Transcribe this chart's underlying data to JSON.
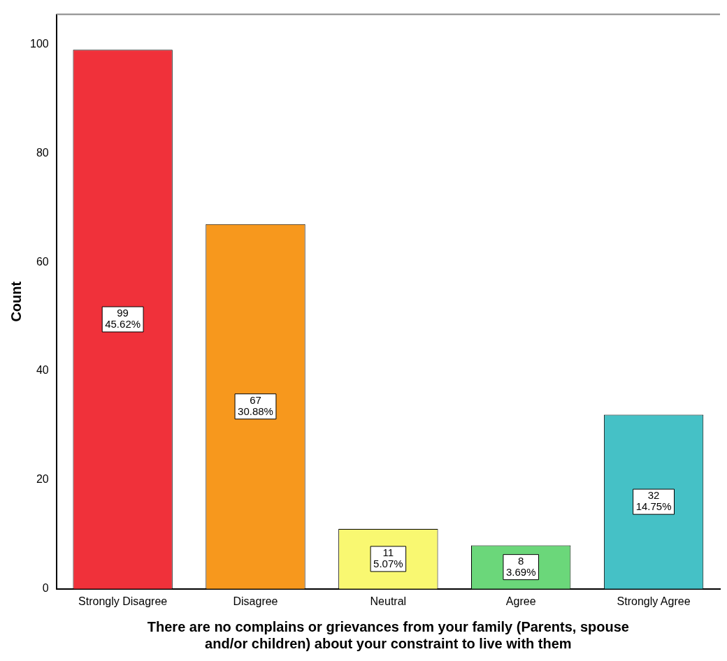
{
  "chart_data": {
    "type": "bar",
    "xlabel": "There are no complains or grievances from your family (Parents, spouse and/or children) about your constraint to live with them",
    "ylabel": "Count",
    "categories": [
      "Strongly Disagree",
      "Disagree",
      "Neutral",
      "Agree",
      "Strongly Agree"
    ],
    "values": [
      99,
      67,
      11,
      8,
      32
    ],
    "colors": [
      "#f0313a",
      "#f7981d",
      "#f9f871",
      "#6bd77a",
      "#45c1c6"
    ],
    "value_labels": [
      "99\n45.62%",
      "67\n30.88%",
      "11\n5.07%",
      "8\n3.69%",
      "32\n14.75%"
    ],
    "ylim": [
      0,
      105.5
    ],
    "yticks": [
      0,
      20,
      40,
      60,
      80,
      100
    ],
    "grid": false,
    "legend": false
  }
}
